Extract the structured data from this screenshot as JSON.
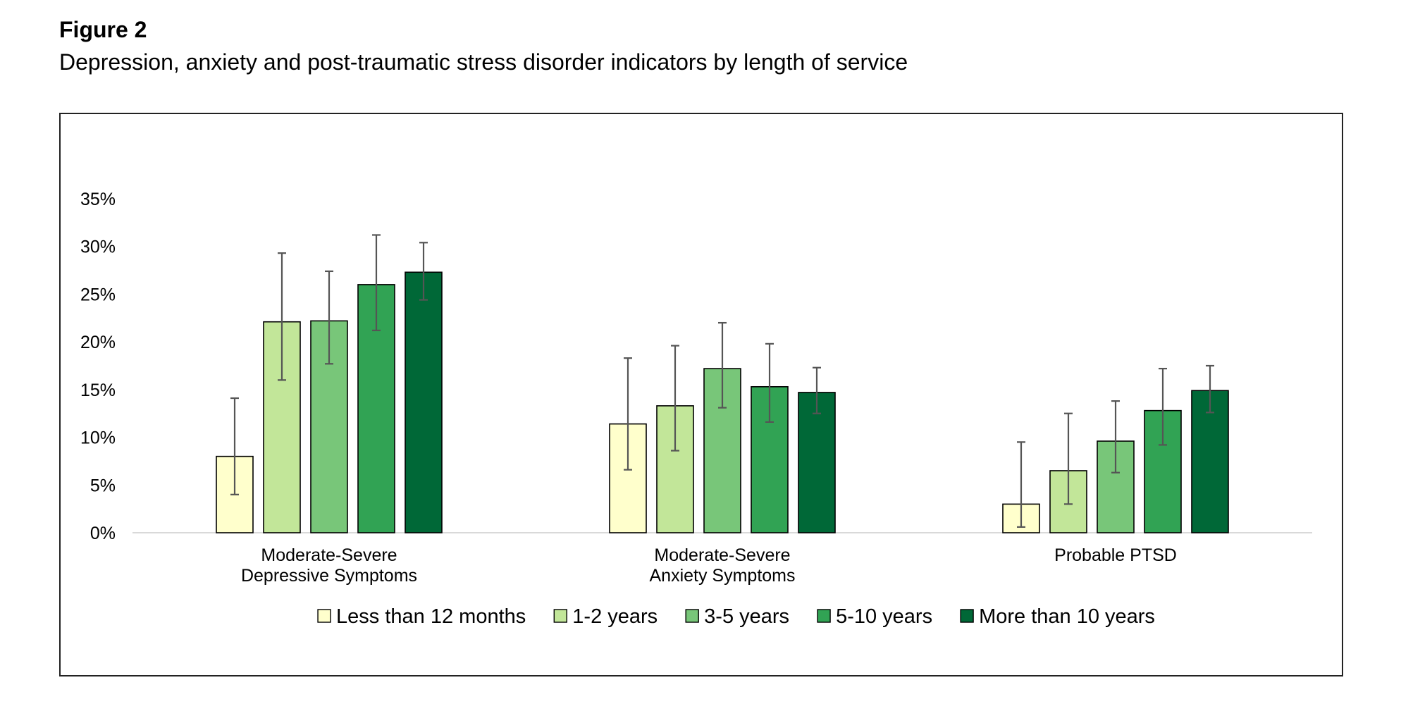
{
  "figure": {
    "label": "Figure 2",
    "title": "Depression, anxiety and post-traumatic stress disorder indicators by length of service"
  },
  "chart_data": {
    "type": "bar",
    "title": "",
    "xlabel": "",
    "ylabel": "",
    "ylim": [
      0,
      35
    ],
    "yticks": [
      "0%",
      "5%",
      "10%",
      "15%",
      "20%",
      "25%",
      "30%",
      "35%"
    ],
    "categories": [
      [
        "Moderate-Severe",
        "Depressive Symptoms"
      ],
      [
        "Moderate-Severe",
        "Anxiety Symptoms"
      ],
      [
        "Probable PTSD"
      ]
    ],
    "legend_position": "bottom",
    "grid": false,
    "series": [
      {
        "name": "Less than 12 months",
        "color": "#FFFFCC",
        "values": [
          8.0,
          11.4,
          3.0
        ],
        "err_low": [
          4.0,
          6.6,
          0.6
        ],
        "err_high": [
          14.1,
          18.3,
          9.5
        ]
      },
      {
        "name": "1-2 years",
        "color": "#C2E699",
        "values": [
          22.1,
          13.3,
          6.5
        ],
        "err_low": [
          16.0,
          8.6,
          3.0
        ],
        "err_high": [
          29.3,
          19.6,
          12.5
        ]
      },
      {
        "name": "3-5 years",
        "color": "#78C679",
        "values": [
          22.2,
          17.2,
          9.6
        ],
        "err_low": [
          17.7,
          13.1,
          6.3
        ],
        "err_high": [
          27.4,
          22.0,
          13.8
        ]
      },
      {
        "name": "5-10 years",
        "color": "#31A354",
        "values": [
          26.0,
          15.3,
          12.8
        ],
        "err_low": [
          21.2,
          11.6,
          9.2
        ],
        "err_high": [
          31.2,
          19.8,
          17.2
        ]
      },
      {
        "name": "More than 10 years",
        "color": "#006837",
        "values": [
          27.3,
          14.7,
          14.9
        ],
        "err_low": [
          24.4,
          12.5,
          12.6
        ],
        "err_high": [
          30.4,
          17.3,
          17.5
        ]
      }
    ]
  }
}
